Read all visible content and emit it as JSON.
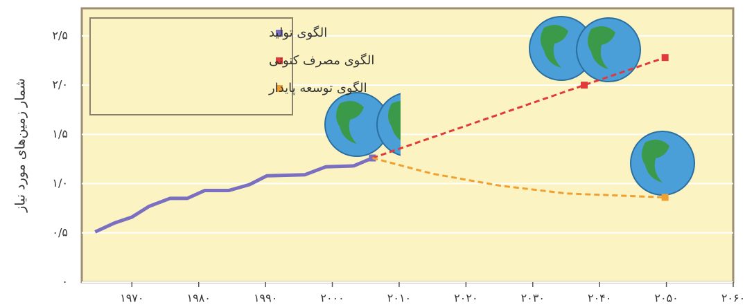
{
  "chart_data": {
    "type": "line",
    "y_label": "شمار زمین‌های مورد نیاز",
    "xlim": [
      1962.5,
      2060
    ],
    "ylim": [
      0,
      2.78
    ],
    "xticks": [
      {
        "value": 1970,
        "label": "۱۹۷۰"
      },
      {
        "value": 1980,
        "label": "۱۹۸۰"
      },
      {
        "value": 1990,
        "label": "۱۹۹۰"
      },
      {
        "value": 2000,
        "label": "۲۰۰۰"
      },
      {
        "value": 2010,
        "label": "۲۰۱۰"
      },
      {
        "value": 2020,
        "label": "۲۰۲۰"
      },
      {
        "value": 2030,
        "label": "۲۰۳۰"
      },
      {
        "value": 2040,
        "label": "۲۰۴۰"
      },
      {
        "value": 2050,
        "label": "۲۰۵۰"
      },
      {
        "value": 2060,
        "label": "۲۰۶۰"
      }
    ],
    "yticks": [
      {
        "value": 0,
        "label": "۰"
      },
      {
        "value": 0.5,
        "label": "۰/۵"
      },
      {
        "value": 1.0,
        "label": "۱/۰"
      },
      {
        "value": 1.5,
        "label": "۱/۵"
      },
      {
        "value": 2.0,
        "label": "۲/۰"
      },
      {
        "value": 2.5,
        "label": "۲/۵"
      }
    ],
    "grid": true,
    "legend": "upper left",
    "series": [
      {
        "name": "الگوی تولید",
        "color": "#7a6fc0",
        "dash": false,
        "x": [
          1964.5,
          1967.4,
          1970,
          1972.6,
          1975.7,
          1978.3,
          1980.9,
          1984.5,
          1987.6,
          1990.2,
          1995.9,
          1999,
          2003.2,
          2006
        ],
        "values": [
          0.51,
          0.6,
          0.66,
          0.77,
          0.85,
          0.85,
          0.93,
          0.93,
          0.99,
          1.08,
          1.09,
          1.17,
          1.18,
          1.26
        ]
      },
      {
        "name": "الگوی مصرف کنونی",
        "color": "#e03a3a",
        "dash": true,
        "x": [
          2006,
          2037.7,
          2049.8
        ],
        "values": [
          1.26,
          2.0,
          2.28
        ]
      },
      {
        "name": "الگوی توسعه پایدار",
        "color": "#f0a030",
        "dash": true,
        "x": [
          2006,
          2015,
          2025,
          2035,
          2049.8
        ],
        "values": [
          1.26,
          1.1,
          0.98,
          0.9,
          0.86
        ]
      }
    ]
  }
}
